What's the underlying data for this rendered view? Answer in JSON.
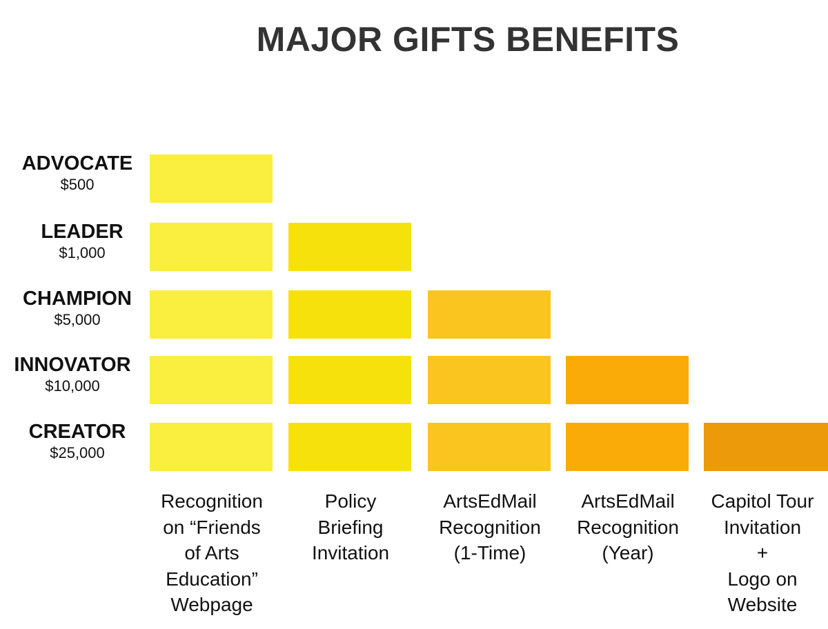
{
  "title": "MAJOR GIFTS BENEFITS",
  "tiers": [
    {
      "name": "ADVOCATE",
      "amount": "$500",
      "benefit_count": 1
    },
    {
      "name": "LEADER",
      "amount": "$1,000",
      "benefit_count": 2
    },
    {
      "name": "CHAMPION",
      "amount": "$5,000",
      "benefit_count": 3
    },
    {
      "name": "INNOVATOR",
      "amount": "$10,000",
      "benefit_count": 4
    },
    {
      "name": "CREATOR",
      "amount": "$25,000",
      "benefit_count": 5
    }
  ],
  "benefits": [
    {
      "lines": [
        "Recognition",
        "on “Friends",
        "of Arts",
        "Education”",
        "Webpage"
      ],
      "color": "#FAEE3E"
    },
    {
      "lines": [
        "Policy",
        "Briefing",
        "Invitation"
      ],
      "color": "#F7E10D"
    },
    {
      "lines": [
        "ArtsEdMail",
        "Recognition",
        "(1-Time)"
      ],
      "color": "#FAC51E"
    },
    {
      "lines": [
        "ArtsEdMail",
        "Recognition",
        "(Year)"
      ],
      "color": "#FAAB08"
    },
    {
      "lines": [
        "Capitol Tour",
        "Invitation",
        "+",
        "Logo on",
        "Website"
      ],
      "color": "#EC9A0A"
    }
  ]
}
